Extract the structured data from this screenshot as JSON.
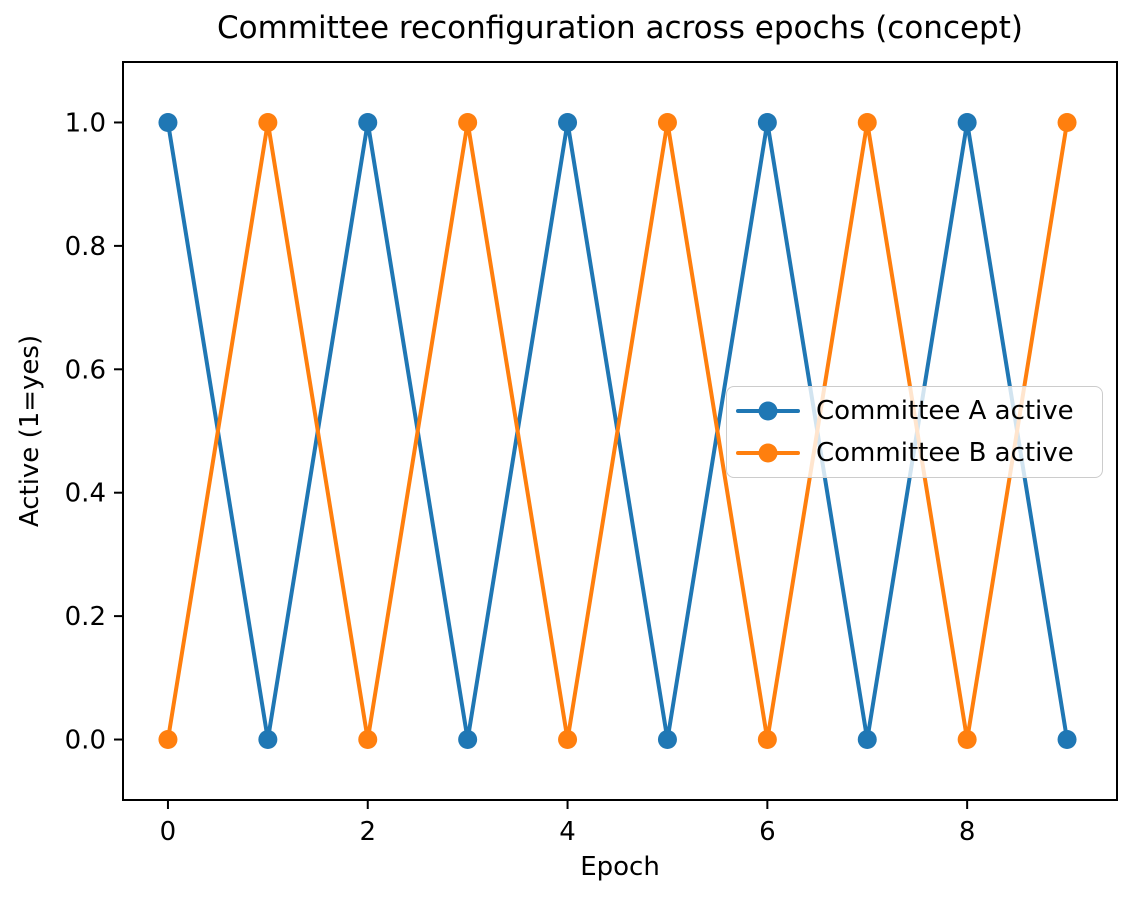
{
  "figure": {
    "background": "#ffffff"
  },
  "chart_data": {
    "type": "line",
    "title": "Committee reconfiguration across epochs (concept)",
    "xlabel": "Epoch",
    "ylabel": "Active (1=yes)",
    "x": [
      0,
      1,
      2,
      3,
      4,
      5,
      6,
      7,
      8,
      9
    ],
    "series": [
      {
        "name": "Committee A active",
        "color": "#1f77b4",
        "values": [
          1,
          0,
          1,
          0,
          1,
          0,
          1,
          0,
          1,
          0
        ]
      },
      {
        "name": "Committee B active",
        "color": "#ff7f0e",
        "values": [
          0,
          1,
          0,
          1,
          0,
          1,
          0,
          1,
          0,
          1
        ]
      }
    ],
    "xticks": [
      0,
      2,
      4,
      6,
      8
    ],
    "yticks": [
      0.0,
      0.2,
      0.4,
      0.6,
      0.8,
      1.0
    ],
    "ytick_labels": [
      "0.0",
      "0.2",
      "0.4",
      "0.6",
      "0.8",
      "1.0"
    ],
    "xlim": [
      -0.45,
      9.5
    ],
    "ylim": [
      -0.098,
      1.098
    ],
    "grid": false,
    "legend": {
      "position": "center right",
      "entries": [
        "Committee A active",
        "Committee B active"
      ]
    },
    "axis_color": "#000000",
    "legend_border_color": "#cccccc",
    "legend_background": "rgba(255,255,255,0.8)"
  }
}
